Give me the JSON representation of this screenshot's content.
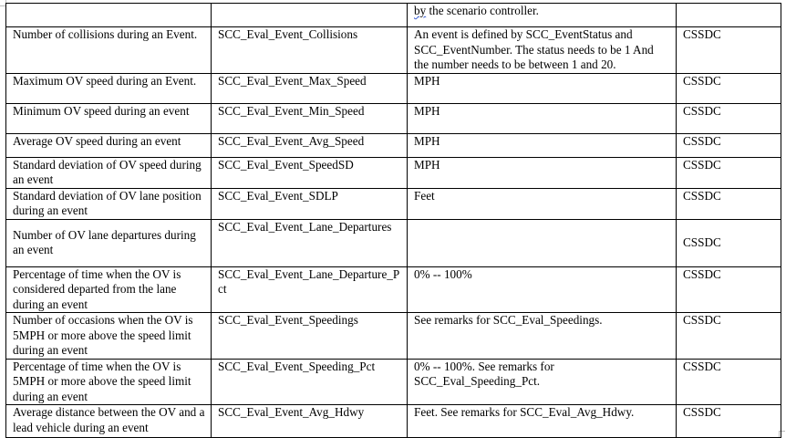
{
  "table": {
    "top_row": {
      "col1": "",
      "col2": "",
      "col3_prefix": "by",
      "col3_rest": " the scenario controller.",
      "col4": ""
    },
    "rows": [
      {
        "description": "Number of collisions during an Event.",
        "variable": "SCC_Eval_Event_Collisions",
        "remarks": "An event is defined by SCC_EventStatus and SCC_EventNumber. The status needs to be 1 And the number needs to be between 1 and 20.",
        "source": "CSSDC"
      },
      {
        "description": "Maximum OV speed during an Event.",
        "variable": "SCC_Eval_Event_Max_Speed",
        "remarks": "MPH",
        "source": "CSSDC"
      },
      {
        "description": "Minimum OV speed during an event",
        "variable": "SCC_Eval_Event_Min_Speed",
        "remarks": "MPH",
        "source": "CSSDC"
      },
      {
        "description": "Average OV speed during an event",
        "variable": "SCC_Eval_Event_Avg_Speed",
        "remarks": "MPH",
        "source": "CSSDC"
      },
      {
        "description": "Standard deviation of OV speed during an event",
        "variable": "SCC_Eval_Event_SpeedSD",
        "remarks": "MPH",
        "source": "CSSDC"
      },
      {
        "description": "Standard deviation of OV lane position during an event",
        "variable": "SCC_Eval_Event_SDLP",
        "remarks": "Feet",
        "source": "CSSDC"
      },
      {
        "description": "Number of OV lane departures during an event",
        "variable": "SCC_Eval_Event_Lane_Departures",
        "remarks": "",
        "source": "CSSDC"
      },
      {
        "description": "Percentage of time when the OV is considered departed from the lane during an event",
        "variable": "SCC_Eval_Event_Lane_Departure_Pct",
        "remarks": "0% -- 100%",
        "source": "CSSDC"
      },
      {
        "description": "Number of occasions when the OV is 5MPH or more above the speed limit during an event",
        "variable": "SCC_Eval_Event_Speedings",
        "remarks": "See remarks for SCC_Eval_Speedings.",
        "source": "CSSDC"
      },
      {
        "description": "Percentage of time when the OV is 5MPH or more above the speed limit during an event",
        "variable": "SCC_Eval_Event_Speeding_Pct",
        "remarks": "0% -- 100%. See remarks for SCC_Eval_Speeding_Pct.",
        "source": "CSSDC"
      },
      {
        "description": "Average distance between the OV and a lead vehicle during an event",
        "variable": "SCC_Eval_Event_Avg_Hdwy",
        "remarks": "Feet. See remarks for SCC_Eval_Avg_Hdwy.",
        "source": "CSSDC"
      }
    ]
  }
}
